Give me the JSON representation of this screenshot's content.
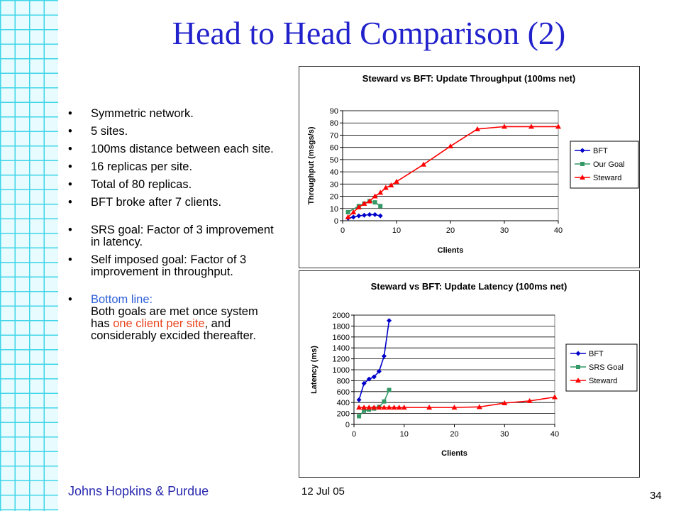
{
  "slide": {
    "title": "Head to Head Comparison (2)",
    "footer_left": "Johns Hopkins & Purdue",
    "footer_date": "12 Jul 05",
    "page_number": "34"
  },
  "bullets": {
    "b1": "Symmetric network.",
    "b2": "5 sites.",
    "b3": "100ms distance between each site.",
    "b4": "16 replicas per site.",
    "b5": "Total of 80 replicas.",
    "b6": "BFT broke after 7 clients.",
    "b7": "SRS goal: Factor of 3 improvement in latency.",
    "b8": "Self imposed goal: Factor of 3 improvement in throughput.",
    "b9_a": "Bottom line:",
    "b9_b": "Both goals are met once system has ",
    "b9_c": "one client per site",
    "b9_d": ", and considerably excided thereafter."
  },
  "colors": {
    "title": "#2222cc",
    "highlight": "#e8441c",
    "bfT": "#0000cc",
    "goal": "#339966",
    "steward": "#ff0000",
    "grid": "#3fd6e8"
  },
  "chart_data": [
    {
      "type": "line",
      "title": "Steward vs BFT: Update Throughput (100ms net)",
      "xlabel": "Clients",
      "ylabel": "Throughput (msgs/s)",
      "xlim": [
        0,
        40
      ],
      "ylim": [
        0,
        90
      ],
      "xticks": [
        0,
        10,
        20,
        30,
        40
      ],
      "yticks": [
        0,
        10,
        20,
        30,
        40,
        50,
        60,
        70,
        80,
        90
      ],
      "grid": true,
      "legend": "right",
      "series": [
        {
          "name": "BFT",
          "color": "#0000cc",
          "marker": "diamond",
          "x": [
            1,
            2,
            3,
            4,
            5,
            6,
            7
          ],
          "y": [
            2,
            3,
            4,
            4.5,
            5,
            5,
            4
          ]
        },
        {
          "name": "Our Goal",
          "color": "#339966",
          "marker": "square",
          "x": [
            1,
            3,
            4,
            5,
            6,
            7
          ],
          "y": [
            7,
            12,
            14,
            16,
            15,
            12
          ]
        },
        {
          "name": "Steward",
          "color": "#ff0000",
          "marker": "triangle",
          "x": [
            1,
            2,
            3,
            4,
            5,
            6,
            7,
            8,
            9,
            10,
            15,
            20,
            25,
            30,
            35,
            40
          ],
          "y": [
            3,
            7,
            11,
            14,
            16,
            20,
            23,
            27,
            29,
            32,
            46,
            61,
            75,
            77,
            77,
            77
          ]
        }
      ]
    },
    {
      "type": "line",
      "title": "Steward vs BFT: Update Latency (100ms net)",
      "xlabel": "Clients",
      "ylabel": "Latency (ms)",
      "xlim": [
        0,
        40
      ],
      "ylim": [
        0,
        2000
      ],
      "xticks": [
        0,
        10,
        20,
        30,
        40
      ],
      "yticks": [
        0,
        200,
        400,
        600,
        800,
        1000,
        1200,
        1400,
        1600,
        1800,
        2000
      ],
      "grid": true,
      "legend": "right",
      "series": [
        {
          "name": "BFT",
          "color": "#0000cc",
          "marker": "diamond",
          "x": [
            1,
            2,
            3,
            4,
            5,
            6,
            7
          ],
          "y": [
            450,
            750,
            830,
            870,
            970,
            1250,
            1900
          ]
        },
        {
          "name": "SRS Goal",
          "color": "#339966",
          "marker": "square",
          "x": [
            1,
            2,
            3,
            4,
            5,
            6,
            7
          ],
          "y": [
            150,
            250,
            270,
            290,
            320,
            420,
            630
          ]
        },
        {
          "name": "Steward",
          "color": "#ff0000",
          "marker": "triangle",
          "x": [
            1,
            2,
            3,
            4,
            5,
            6,
            7,
            8,
            9,
            10,
            15,
            20,
            25,
            30,
            35,
            40
          ],
          "y": [
            310,
            310,
            310,
            310,
            310,
            310,
            310,
            310,
            310,
            310,
            310,
            310,
            320,
            390,
            430,
            500
          ]
        }
      ]
    }
  ]
}
